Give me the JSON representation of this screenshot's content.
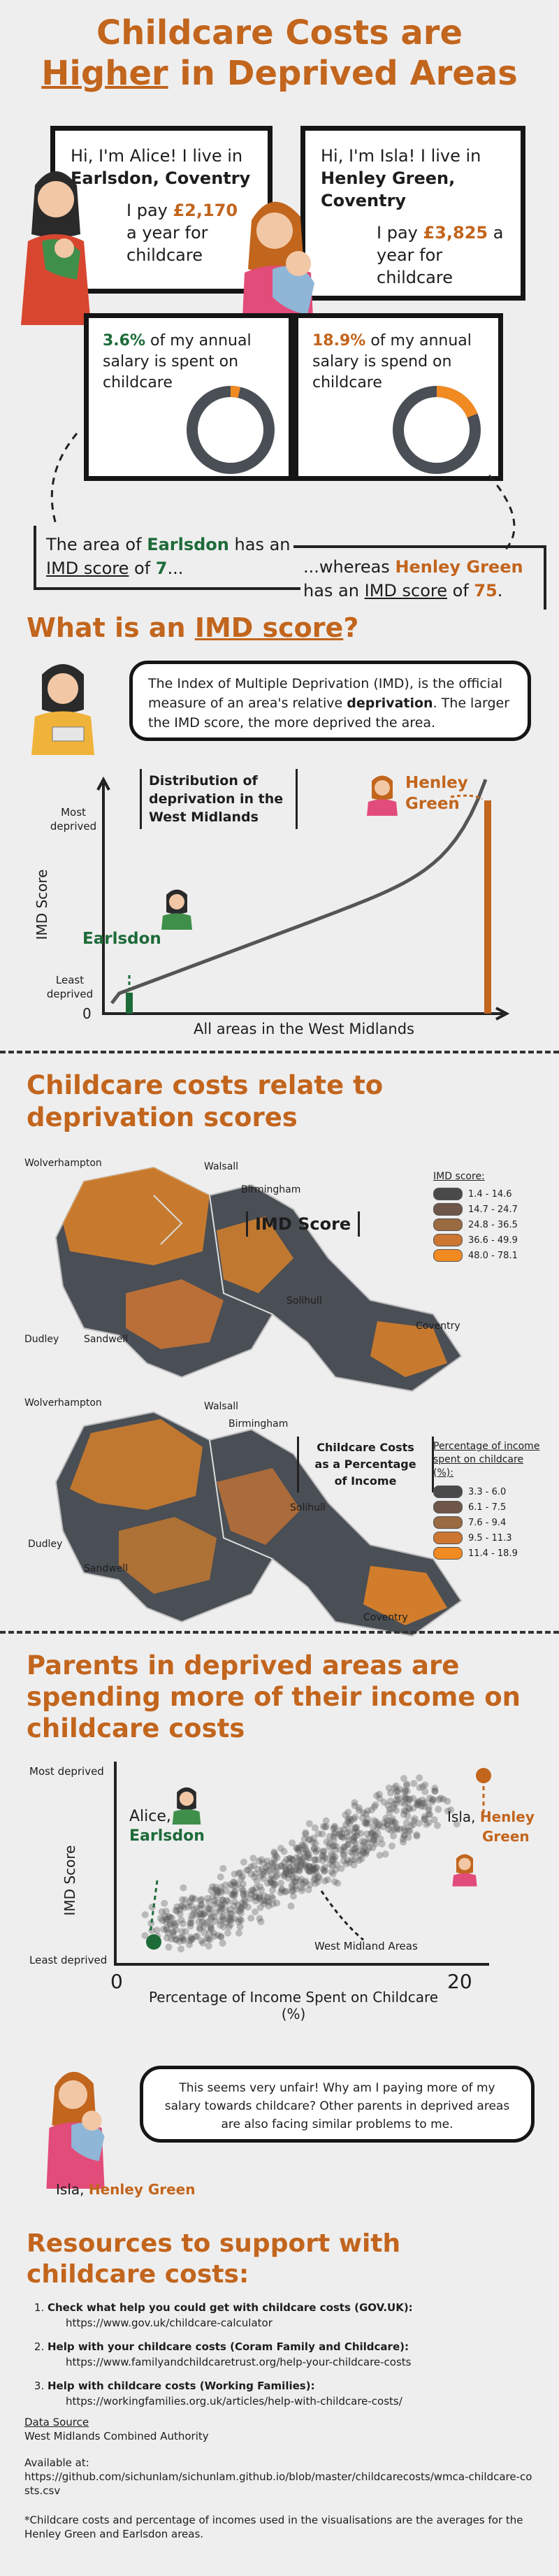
{
  "header": {
    "title_line1": "Childcare Costs are",
    "title_higher": "Higher",
    "title_rest": " in Deprived Areas"
  },
  "alice": {
    "intro": "Hi, I'm Alice! I live in ",
    "place": "Earlsdon, Coventry",
    "pay_pre": "I pay ",
    "pay_amount": "£2,170",
    "pay_post": " a year for childcare",
    "percent": "3.6%",
    "percent_text": " of my annual salary is spent on childcare",
    "share": 0.036,
    "imd_pre": "The area of ",
    "imd_area": "Earlsdon",
    "imd_mid": " has an ",
    "imd_link": "IMD score",
    "imd_of": " of ",
    "imd_value": "7",
    "imd_end": "..."
  },
  "isla": {
    "intro": "Hi, I'm Isla! I live in ",
    "place": "Henley Green, Coventry",
    "pay_pre": "I pay ",
    "pay_amount": "£3,825",
    "pay_post": " a year for childcare",
    "percent": "18.9%",
    "percent_text": " of my annual salary is spend on childcare",
    "share": 0.189,
    "imd_pre": "...whereas ",
    "imd_area": "Henley Green",
    "imd_mid": " has an ",
    "imd_link": "IMD score",
    "imd_of": " of ",
    "imd_value": "75",
    "imd_end": "."
  },
  "imd_section": {
    "heading_pre": "What is an ",
    "heading_link": "IMD score",
    "heading_end": "?",
    "def_pre": "The Index of Multiple Deprivation (IMD), is the official measure of an area's relative ",
    "def_bold": "deprivation",
    "def_post": ". The larger the IMD score, the more deprived the area."
  },
  "dist_chart": {
    "label": "Distribution of deprivation in the West Midlands",
    "ylabel": "IMD Score",
    "y_top": "Most deprived",
    "y_bottom": "Least deprived",
    "zero": "0",
    "xlabel": "All areas in the West Midlands",
    "earlsdon": "Earlsdon",
    "henley_line1": "Henley",
    "henley_line2": "Green"
  },
  "maps_section": {
    "heading": "Childcare costs relate to deprivation scores",
    "towns": [
      "Wolverhampton",
      "Walsall",
      "Birmingham",
      "Solihull",
      "Dudley",
      "Sandwell",
      "Coventry"
    ],
    "map1_label": "IMD Score",
    "map1_legend_title": "IMD score:",
    "map1_legend": [
      "1.4 - 14.6",
      "14.7 - 24.7",
      "24.8 - 36.5",
      "36.6 - 49.9",
      "48.0 - 78.1"
    ],
    "map2_label_line1": "Childcare Costs",
    "map2_label_line2": "as a Percentage",
    "map2_label_line3": "of Income",
    "map2_legend_title": "Percentage of income spent on childcare (%):",
    "map2_legend": [
      "3.3 - 6.0",
      "6.1 - 7.5",
      "7.6 - 9.4",
      "9.5 - 11.3",
      "11.4 - 18.9"
    ],
    "legend_colors": [
      "#4a4a4a",
      "#6e5648",
      "#9a6a40",
      "#cc7632",
      "#f28a22"
    ]
  },
  "scatter_section": {
    "heading": "Parents in deprived areas are spending more of their income on childcare costs",
    "ylabel": "IMD Score",
    "y_top": "Most deprived",
    "y_bottom": "Least deprived",
    "xlabel": "Percentage of Income Spent on Childcare (%)",
    "x0": "0",
    "x20": "20",
    "alice_name": "Alice,",
    "alice_place": "Earlsdon",
    "isla_name": "Isla, ",
    "isla_place_1": "Henley",
    "isla_place_2": "Green",
    "areas_label": "West Midland Areas"
  },
  "chart_data": {
    "type": "scatter",
    "xlabel": "Percentage of Income Spent on Childcare (%)",
    "ylabel": "IMD Score",
    "xlim": [
      0,
      20
    ],
    "highlight": [
      {
        "name": "Earlsdon",
        "x": 3.6,
        "y": 7
      },
      {
        "name": "Henley Green",
        "x": 18.9,
        "y": 75
      }
    ]
  },
  "quote": {
    "text": "This seems very unfair! Why am I paying more of my salary towards childcare? Other parents in deprived areas are also facing similar problems to me.",
    "name": "Isla, ",
    "place": "Henley Green"
  },
  "resources": {
    "heading": "Resources to support with childcare costs:",
    "items": [
      {
        "title": "Check what help you could get with childcare costs (GOV.UK):",
        "url": "https://www.gov.uk/childcare-calculator"
      },
      {
        "title": "Help with your childcare costs (Coram Family and Childcare):",
        "url": "https://www.familyandchildcaretrust.org/help-your-childcare-costs"
      },
      {
        "title": "Help with childcare costs (Working Families):",
        "url": "https://workingfamilies.org.uk/articles/help-with-childcare-costs/"
      }
    ]
  },
  "footer": {
    "source_label": "Data Source",
    "source": "West Midlands Combined Authority",
    "available": "Available at:",
    "url": "https://github.com/sichunlam/sichunlam.github.io/blob/master/childcarecosts/wmca-childcare-costs.csv",
    "note": "*Childcare costs and percentage of incomes used in the visualisations are the averages for the Henley Green and Earlsdon areas."
  },
  "colors": {
    "orange": "#c2651d",
    "green": "#1e6b3a",
    "bright_orange": "#f28a22"
  }
}
